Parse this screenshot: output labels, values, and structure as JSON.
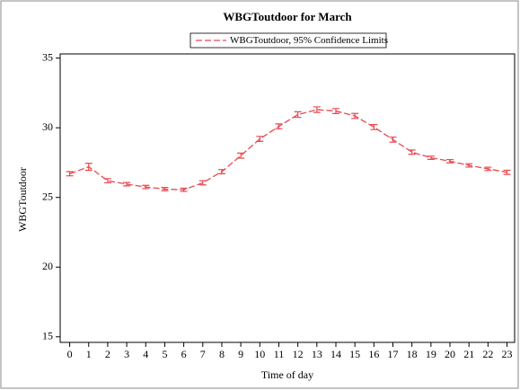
{
  "chart_data": {
    "type": "line",
    "title": "WBGToutdoor for March",
    "x_label": "Time of day",
    "y_label": "WBGToutdoor",
    "x": [
      0,
      1,
      2,
      3,
      4,
      5,
      6,
      7,
      8,
      9,
      10,
      11,
      12,
      13,
      14,
      15,
      16,
      17,
      18,
      19,
      20,
      21,
      22,
      23
    ],
    "series": [
      {
        "name": "WBGToutdoor, 95% Confidence Limits",
        "color": "#e8494f",
        "values": [
          26.7,
          27.2,
          26.2,
          25.95,
          25.75,
          25.6,
          25.55,
          26.05,
          26.85,
          28.0,
          29.2,
          30.1,
          30.95,
          31.3,
          31.2,
          30.85,
          30.05,
          29.15,
          28.25,
          27.85,
          27.6,
          27.3,
          27.05,
          26.8
        ],
        "errors": [
          0.15,
          0.25,
          0.15,
          0.12,
          0.12,
          0.12,
          0.12,
          0.15,
          0.15,
          0.18,
          0.18,
          0.18,
          0.2,
          0.2,
          0.18,
          0.18,
          0.18,
          0.18,
          0.15,
          0.12,
          0.12,
          0.12,
          0.12,
          0.15
        ]
      }
    ],
    "xlim": [
      -0.5,
      23.4
    ],
    "xticks": [
      0,
      1,
      2,
      3,
      4,
      5,
      6,
      7,
      8,
      9,
      10,
      11,
      12,
      13,
      14,
      15,
      16,
      17,
      18,
      19,
      20,
      21,
      22,
      23
    ],
    "ylim": [
      14.6,
      35.3
    ],
    "yticks": [
      15,
      20,
      25,
      30,
      35
    ]
  }
}
